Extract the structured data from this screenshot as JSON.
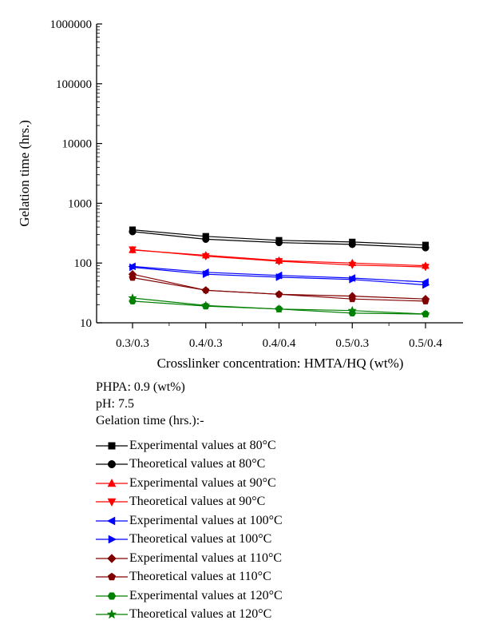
{
  "chart_data": {
    "type": "line",
    "title": "",
    "xlabel": "Crosslinker concentration: HMTA/HQ (wt%)",
    "ylabel": "Gelation time (hrs.)",
    "yscale": "log",
    "ylim": [
      10,
      1000000
    ],
    "yticks": [
      "10",
      "100",
      "1000",
      "10000",
      "100000",
      "1000000"
    ],
    "categories": [
      "0.3/0.3",
      "0.4/0.3",
      "0.4/0.4",
      "0.5/0.3",
      "0.5/0.4"
    ],
    "series": [
      {
        "name": "Experimental values at 80°C",
        "color": "#000000",
        "marker": "square",
        "values": [
          360,
          280,
          240,
          225,
          200
        ]
      },
      {
        "name": "Theoretical values at 80°C",
        "color": "#000000",
        "marker": "circle",
        "values": [
          335,
          250,
          220,
          205,
          180
        ]
      },
      {
        "name": "Experimental values at 90°C",
        "color": "#ff0000",
        "marker": "triangle-up",
        "values": [
          165,
          135,
          110,
          100,
          90
        ]
      },
      {
        "name": "Theoretical values at 90°C",
        "color": "#ff0000",
        "marker": "triangle-down",
        "values": [
          168,
          130,
          107,
          93,
          86
        ]
      },
      {
        "name": "Experimental values at 100°C",
        "color": "#0000ff",
        "marker": "triangle-left",
        "values": [
          88,
          70,
          62,
          56,
          48
        ]
      },
      {
        "name": "Theoretical values at 100°C",
        "color": "#0000ff",
        "marker": "triangle-right",
        "values": [
          85,
          65,
          58,
          53,
          43
        ]
      },
      {
        "name": "Experimental values at 110°C",
        "color": "#800000",
        "marker": "diamond",
        "values": [
          65,
          35,
          30,
          28,
          25
        ]
      },
      {
        "name": "Theoretical values at 110°C",
        "color": "#800000",
        "marker": "pentagon",
        "values": [
          57,
          35,
          30,
          25,
          23
        ]
      },
      {
        "name": "Experimental values at 120°C",
        "color": "#008000",
        "marker": "hexagon",
        "values": [
          23,
          19,
          17,
          14.5,
          14
        ]
      },
      {
        "name": "Theoretical values at 120°C",
        "color": "#008000",
        "marker": "star",
        "values": [
          26,
          19.5,
          17,
          16,
          14
        ]
      }
    ]
  },
  "notes": {
    "polymer": "PHPA: 0.9 (wt%)",
    "ph": "pH: 7.5",
    "heading": "Gelation time (hrs.):-"
  }
}
